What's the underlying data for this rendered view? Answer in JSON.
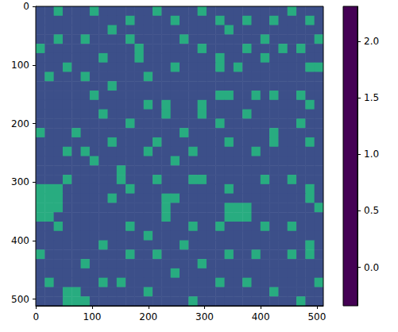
{
  "chart_data": {
    "type": "heatmap",
    "color": "viridis",
    "x": [
      7.5,
      23.5,
      39.5,
      55.5,
      71.5,
      87.5,
      103.5,
      119.5,
      135.5,
      151.5,
      167.5,
      183.5,
      199.5,
      215.5,
      231.5,
      247.5,
      263.5,
      279.5,
      295.5,
      311.5,
      327.5,
      343.5,
      359.5,
      375.5,
      391.5,
      407.5,
      423.5,
      439.5,
      455.5,
      471.5,
      487.5,
      503.5
    ],
    "y": [
      7.5,
      23.5,
      39.5,
      55.5,
      71.5,
      87.5,
      103.5,
      119.5,
      135.5,
      151.5,
      167.5,
      183.5,
      199.5,
      215.5,
      231.5,
      247.5,
      263.5,
      279.5,
      295.5,
      311.5,
      327.5,
      343.5,
      359.5,
      375.5,
      391.5,
      407.5,
      423.5,
      439.5,
      455.5,
      471.5,
      487.5,
      503.5
    ],
    "cells": [
      [
        0.3,
        0.3,
        1.3,
        0.3,
        0.3,
        0.3,
        1.3,
        0.3,
        0.3,
        0.3,
        0.3,
        0.3,
        0.3,
        1.3,
        0.3,
        0.3,
        0.3,
        0.3,
        1.3,
        0.3,
        0.3,
        0.3,
        0.3,
        0.3,
        0.3,
        0.3,
        0.3,
        0.3,
        1.3,
        0.3,
        0.3,
        0.3
      ],
      [
        0.3,
        0.3,
        0.3,
        0.3,
        0.3,
        0.3,
        0.3,
        0.3,
        0.3,
        0.3,
        1.3,
        0.3,
        0.3,
        0.3,
        0.3,
        1.3,
        0.3,
        0.3,
        0.3,
        0.3,
        1.3,
        0.3,
        0.3,
        1.3,
        0.3,
        0.3,
        1.3,
        0.3,
        0.3,
        0.3,
        1.3,
        0.3
      ],
      [
        0.3,
        0.3,
        0.3,
        0.3,
        0.3,
        0.3,
        0.3,
        0.3,
        1.3,
        0.3,
        0.3,
        0.3,
        0.3,
        0.3,
        0.3,
        0.3,
        0.3,
        0.3,
        0.3,
        0.3,
        0.3,
        1.3,
        0.3,
        0.3,
        0.3,
        0.3,
        0.3,
        0.3,
        0.3,
        0.3,
        0.3,
        0.3
      ],
      [
        0.3,
        0.3,
        1.3,
        0.3,
        0.3,
        1.3,
        0.3,
        0.3,
        0.3,
        0.3,
        1.3,
        0.3,
        0.3,
        0.3,
        0.3,
        0.3,
        1.3,
        0.3,
        0.3,
        0.3,
        0.3,
        0.3,
        0.3,
        0.3,
        0.3,
        1.3,
        0.3,
        0.3,
        0.3,
        0.3,
        0.3,
        1.3
      ],
      [
        1.3,
        0.3,
        0.3,
        0.3,
        0.3,
        0.3,
        0.3,
        0.3,
        0.3,
        0.3,
        0.3,
        1.3,
        0.3,
        0.3,
        0.3,
        0.3,
        0.3,
        0.3,
        1.3,
        0.3,
        0.3,
        0.3,
        0.3,
        1.3,
        0.3,
        0.3,
        0.3,
        1.3,
        0.3,
        1.3,
        0.3,
        0.3
      ],
      [
        0.3,
        0.3,
        0.3,
        0.3,
        0.3,
        0.3,
        0.3,
        1.3,
        0.3,
        0.3,
        0.3,
        1.3,
        0.3,
        0.3,
        0.3,
        0.3,
        0.3,
        0.3,
        0.3,
        0.3,
        1.3,
        0.3,
        0.3,
        0.3,
        0.3,
        1.3,
        0.3,
        0.3,
        0.3,
        0.3,
        0.3,
        0.3
      ],
      [
        0.3,
        0.3,
        0.3,
        1.3,
        0.3,
        0.3,
        0.3,
        0.3,
        0.3,
        0.3,
        0.3,
        0.3,
        0.3,
        0.3,
        0.3,
        1.3,
        0.3,
        0.3,
        0.3,
        0.3,
        1.3,
        0.3,
        1.3,
        0.3,
        0.3,
        0.3,
        0.3,
        0.3,
        0.3,
        0.3,
        1.3,
        1.3
      ],
      [
        0.3,
        1.3,
        0.3,
        0.3,
        0.3,
        1.3,
        0.3,
        0.3,
        0.3,
        0.3,
        0.3,
        0.3,
        1.3,
        0.3,
        0.3,
        0.3,
        0.3,
        0.3,
        0.3,
        0.3,
        0.3,
        0.3,
        0.3,
        0.3,
        0.3,
        0.3,
        0.3,
        0.3,
        0.3,
        0.3,
        0.3,
        0.3
      ],
      [
        0.3,
        0.3,
        0.3,
        0.3,
        0.3,
        0.3,
        0.3,
        0.3,
        1.3,
        0.3,
        0.3,
        0.3,
        0.3,
        0.3,
        0.3,
        0.3,
        0.3,
        0.3,
        0.3,
        0.3,
        0.3,
        0.3,
        0.3,
        0.3,
        0.3,
        0.3,
        0.3,
        0.3,
        0.3,
        0.3,
        0.3,
        0.3
      ],
      [
        0.3,
        0.3,
        0.3,
        0.3,
        0.3,
        0.3,
        1.3,
        0.3,
        0.3,
        0.3,
        0.3,
        0.3,
        0.3,
        0.3,
        0.3,
        0.3,
        0.3,
        0.3,
        0.3,
        0.3,
        1.3,
        1.3,
        0.3,
        0.3,
        1.3,
        0.3,
        1.3,
        0.3,
        0.3,
        1.3,
        0.3,
        0.3
      ],
      [
        0.3,
        0.3,
        0.3,
        0.3,
        0.3,
        0.3,
        0.3,
        0.3,
        0.3,
        0.3,
        0.3,
        0.3,
        1.3,
        0.3,
        1.3,
        0.3,
        0.3,
        0.3,
        1.3,
        0.3,
        0.3,
        0.3,
        0.3,
        0.3,
        0.3,
        0.3,
        0.3,
        0.3,
        0.3,
        0.3,
        1.3,
        0.3
      ],
      [
        0.3,
        0.3,
        0.3,
        0.3,
        0.3,
        0.3,
        0.3,
        1.3,
        0.3,
        0.3,
        0.3,
        0.3,
        0.3,
        0.3,
        1.3,
        0.3,
        0.3,
        0.3,
        1.3,
        0.3,
        0.3,
        0.3,
        0.3,
        1.3,
        0.3,
        0.3,
        0.3,
        0.3,
        0.3,
        0.3,
        0.3,
        0.3
      ],
      [
        0.3,
        0.3,
        0.3,
        0.3,
        0.3,
        0.3,
        0.3,
        0.3,
        0.3,
        0.3,
        1.3,
        0.3,
        0.3,
        0.3,
        0.3,
        0.3,
        0.3,
        0.3,
        0.3,
        0.3,
        1.3,
        0.3,
        0.3,
        0.3,
        0.3,
        0.3,
        0.3,
        0.3,
        0.3,
        1.3,
        0.3,
        0.3
      ],
      [
        1.3,
        0.3,
        0.3,
        0.3,
        1.3,
        0.3,
        0.3,
        0.3,
        0.3,
        0.3,
        0.3,
        0.3,
        0.3,
        0.3,
        0.3,
        0.3,
        1.3,
        0.3,
        0.3,
        0.3,
        0.3,
        0.3,
        0.3,
        0.3,
        0.3,
        0.3,
        1.3,
        0.3,
        0.3,
        0.3,
        0.3,
        0.3
      ],
      [
        0.3,
        0.3,
        0.3,
        0.3,
        0.3,
        0.3,
        0.3,
        0.3,
        1.3,
        0.3,
        0.3,
        0.3,
        0.3,
        1.3,
        0.3,
        0.3,
        0.3,
        0.3,
        0.3,
        0.3,
        0.3,
        1.3,
        0.3,
        0.3,
        0.3,
        0.3,
        1.3,
        0.3,
        0.3,
        0.3,
        1.3,
        0.3
      ],
      [
        0.3,
        0.3,
        0.3,
        1.3,
        0.3,
        1.3,
        0.3,
        0.3,
        0.3,
        0.3,
        0.3,
        0.3,
        1.3,
        0.3,
        0.3,
        0.3,
        0.3,
        1.3,
        0.3,
        0.3,
        0.3,
        0.3,
        0.3,
        0.3,
        1.3,
        0.3,
        0.3,
        0.3,
        0.3,
        0.3,
        0.3,
        0.3
      ],
      [
        0.3,
        0.3,
        0.3,
        0.3,
        0.3,
        0.3,
        1.3,
        0.3,
        0.3,
        0.3,
        0.3,
        0.3,
        0.3,
        0.3,
        0.3,
        1.3,
        0.3,
        0.3,
        0.3,
        0.3,
        0.3,
        0.3,
        0.3,
        0.3,
        0.3,
        0.3,
        0.3,
        0.3,
        0.3,
        0.3,
        0.3,
        0.3
      ],
      [
        0.3,
        0.3,
        0.3,
        0.3,
        0.3,
        0.3,
        0.3,
        0.3,
        0.3,
        1.3,
        0.3,
        0.3,
        0.3,
        0.3,
        0.3,
        0.3,
        0.3,
        0.3,
        0.3,
        0.3,
        0.3,
        0.3,
        0.3,
        0.3,
        0.3,
        0.3,
        0.3,
        0.3,
        0.3,
        0.3,
        0.3,
        0.3
      ],
      [
        0.3,
        0.3,
        0.3,
        1.3,
        0.3,
        0.3,
        0.3,
        0.3,
        0.3,
        1.3,
        0.3,
        0.3,
        0.3,
        1.3,
        0.3,
        0.3,
        0.3,
        1.3,
        1.3,
        0.3,
        0.3,
        0.3,
        0.3,
        0.3,
        0.3,
        1.3,
        0.3,
        0.3,
        1.3,
        0.3,
        0.3,
        0.3
      ],
      [
        1.3,
        1.3,
        1.3,
        0.3,
        0.3,
        0.3,
        0.3,
        0.3,
        0.3,
        0.3,
        1.3,
        0.3,
        0.3,
        0.3,
        0.3,
        0.3,
        0.3,
        0.3,
        0.3,
        0.3,
        0.3,
        1.3,
        0.3,
        0.3,
        0.3,
        0.3,
        0.3,
        0.3,
        0.3,
        0.3,
        1.3,
        0.3
      ],
      [
        1.3,
        1.3,
        1.3,
        0.3,
        0.3,
        0.3,
        0.3,
        0.3,
        1.3,
        0.3,
        0.3,
        0.3,
        0.3,
        0.3,
        1.3,
        1.3,
        0.3,
        0.3,
        0.3,
        0.3,
        0.3,
        0.3,
        0.3,
        0.3,
        0.3,
        0.3,
        0.3,
        0.3,
        0.3,
        0.3,
        1.3,
        0.3
      ],
      [
        1.3,
        1.3,
        1.3,
        0.3,
        0.3,
        0.3,
        0.3,
        0.3,
        0.3,
        0.3,
        0.3,
        0.3,
        0.3,
        0.3,
        1.3,
        0.3,
        0.3,
        0.3,
        0.3,
        0.3,
        0.3,
        1.3,
        1.3,
        1.3,
        0.3,
        0.3,
        0.3,
        0.3,
        0.3,
        0.3,
        0.3,
        1.3
      ],
      [
        1.3,
        1.3,
        0.3,
        0.3,
        0.3,
        0.3,
        0.3,
        0.3,
        0.3,
        0.3,
        0.3,
        0.3,
        0.3,
        0.3,
        1.3,
        0.3,
        0.3,
        0.3,
        0.3,
        0.3,
        0.3,
        1.3,
        1.3,
        1.3,
        0.3,
        0.3,
        0.3,
        0.3,
        0.3,
        0.3,
        0.3,
        0.3
      ],
      [
        0.3,
        0.3,
        1.3,
        0.3,
        0.3,
        0.3,
        0.3,
        0.3,
        0.3,
        0.3,
        1.3,
        0.3,
        0.3,
        0.3,
        0.3,
        0.3,
        0.3,
        1.3,
        0.3,
        0.3,
        1.3,
        0.3,
        0.3,
        0.3,
        0.3,
        1.3,
        0.3,
        0.3,
        1.3,
        0.3,
        0.3,
        0.3
      ],
      [
        0.3,
        0.3,
        0.3,
        0.3,
        0.3,
        0.3,
        0.3,
        0.3,
        0.3,
        0.3,
        0.3,
        0.3,
        1.3,
        0.3,
        0.3,
        0.3,
        0.3,
        0.3,
        0.3,
        0.3,
        0.3,
        0.3,
        0.3,
        0.3,
        0.3,
        0.3,
        0.3,
        0.3,
        0.3,
        0.3,
        0.3,
        0.3
      ],
      [
        0.3,
        0.3,
        0.3,
        0.3,
        0.3,
        0.3,
        0.3,
        1.3,
        0.3,
        0.3,
        0.3,
        0.3,
        0.3,
        0.3,
        0.3,
        0.3,
        1.3,
        0.3,
        0.3,
        0.3,
        0.3,
        0.3,
        0.3,
        0.3,
        0.3,
        0.3,
        0.3,
        0.3,
        0.3,
        0.3,
        1.3,
        0.3
      ],
      [
        1.3,
        0.3,
        0.3,
        0.3,
        0.3,
        0.3,
        0.3,
        0.3,
        0.3,
        0.3,
        1.3,
        0.3,
        0.3,
        1.3,
        0.3,
        0.3,
        0.3,
        0.3,
        0.3,
        0.3,
        0.3,
        1.3,
        0.3,
        0.3,
        1.3,
        0.3,
        0.3,
        0.3,
        1.3,
        0.3,
        1.3,
        0.3
      ],
      [
        0.3,
        0.3,
        0.3,
        0.3,
        0.3,
        1.3,
        0.3,
        0.3,
        0.3,
        0.3,
        0.3,
        0.3,
        0.3,
        0.3,
        0.3,
        0.3,
        0.3,
        0.3,
        1.3,
        0.3,
        0.3,
        0.3,
        0.3,
        0.3,
        0.3,
        0.3,
        0.3,
        0.3,
        0.3,
        0.3,
        0.3,
        0.3
      ],
      [
        0.3,
        0.3,
        0.3,
        0.3,
        0.3,
        0.3,
        0.3,
        0.3,
        0.3,
        0.3,
        0.3,
        0.3,
        0.3,
        0.3,
        0.3,
        1.3,
        0.3,
        0.3,
        0.3,
        0.3,
        0.3,
        0.3,
        0.3,
        0.3,
        0.3,
        0.3,
        0.3,
        0.3,
        0.3,
        0.3,
        0.3,
        0.3
      ],
      [
        0.3,
        1.3,
        0.3,
        0.3,
        0.3,
        0.3,
        0.3,
        1.3,
        0.3,
        1.3,
        0.3,
        0.3,
        0.3,
        0.3,
        0.3,
        0.3,
        0.3,
        0.3,
        0.3,
        0.3,
        1.3,
        0.3,
        0.3,
        1.3,
        0.3,
        0.3,
        0.3,
        0.3,
        0.3,
        0.3,
        0.3,
        1.3
      ],
      [
        0.3,
        0.3,
        0.3,
        1.3,
        1.3,
        0.3,
        0.3,
        0.3,
        0.3,
        0.3,
        0.3,
        0.3,
        1.3,
        0.3,
        0.3,
        0.3,
        0.3,
        0.3,
        0.3,
        0.3,
        0.3,
        0.3,
        0.3,
        0.3,
        0.3,
        0.3,
        1.3,
        0.3,
        0.3,
        0.3,
        0.3,
        0.3
      ],
      [
        0.3,
        0.3,
        0.3,
        1.3,
        1.3,
        1.3,
        0.3,
        0.3,
        0.3,
        0.3,
        0.3,
        0.3,
        0.3,
        0.3,
        0.3,
        0.3,
        0.3,
        1.3,
        0.3,
        0.3,
        0.3,
        0.3,
        0.3,
        0.3,
        0.3,
        0.3,
        0.3,
        0.3,
        0.3,
        1.3,
        0.3,
        0.3
      ]
    ],
    "xlim": [
      -0.5,
      511.5
    ],
    "ylim": [
      511.5,
      -0.5
    ],
    "xticks": [
      0,
      100,
      200,
      300,
      400,
      500
    ],
    "yticks": [
      0,
      100,
      200,
      300,
      400,
      500
    ],
    "colorbar": {
      "range": [
        -0.34,
        2.31
      ],
      "ticks": [
        {
          "value": 0,
          "label": "0.0"
        },
        {
          "value": 0.5,
          "label": "0.5"
        },
        {
          "value": 1,
          "label": "1.0"
        },
        {
          "value": 1.5,
          "label": "1.5"
        },
        {
          "value": 2,
          "label": "2.0"
        }
      ]
    }
  }
}
